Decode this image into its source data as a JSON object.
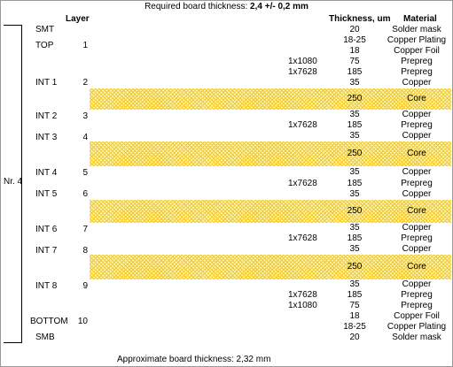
{
  "title": {
    "prefix": "Required board thickness: ",
    "value": "2,4 +/- 0,2 mm"
  },
  "headers": {
    "layer": "Layer",
    "thickness": "Thickness, um",
    "material": "Material"
  },
  "group_label": "Nr. 4",
  "footer": "Approximate board thickness: 2,32 mm",
  "colors": {
    "copper": "#e36c09",
    "mask": "#00a000",
    "prepreg": "#fffa9e",
    "core": "#f0c833"
  },
  "layer_names": [
    {
      "name": "SMT",
      "num": ""
    },
    {
      "name": "TOP",
      "num": "1"
    },
    {
      "name": "INT 1",
      "num": "2"
    },
    {
      "name": "INT 2",
      "num": "3"
    },
    {
      "name": "INT 3",
      "num": "4"
    },
    {
      "name": "INT 4",
      "num": "5"
    },
    {
      "name": "INT 5",
      "num": "6"
    },
    {
      "name": "INT 6",
      "num": "7"
    },
    {
      "name": "INT 7",
      "num": "8"
    },
    {
      "name": "INT 8",
      "num": "9"
    },
    {
      "name": "BOTTOM",
      "num": "10"
    },
    {
      "name": "SMB",
      "num": ""
    }
  ],
  "stack": [
    {
      "kind": "mask",
      "style": "",
      "thickness": "20",
      "material": "Solder mask"
    },
    {
      "kind": "copper",
      "style": "",
      "thickness": "18-25",
      "material": "Copper Plating"
    },
    {
      "kind": "copper",
      "style": "",
      "thickness": "18",
      "material": "Copper Foil"
    },
    {
      "kind": "prepreg",
      "style": "1x1080",
      "thickness": "75",
      "material": "Prepreg"
    },
    {
      "kind": "prepreg",
      "style": "1x7628",
      "thickness": "185",
      "material": "Prepreg"
    },
    {
      "kind": "copper",
      "style": "",
      "thickness": "35",
      "material": "Copper"
    },
    {
      "kind": "core",
      "style": "",
      "thickness": "250",
      "material": "Core"
    },
    {
      "kind": "copper",
      "style": "",
      "thickness": "35",
      "material": "Copper"
    },
    {
      "kind": "prepreg",
      "style": "1x7628",
      "thickness": "185",
      "material": "Prepreg"
    },
    {
      "kind": "copper",
      "style": "",
      "thickness": "35",
      "material": "Copper"
    },
    {
      "kind": "core",
      "style": "",
      "thickness": "250",
      "material": "Core"
    },
    {
      "kind": "copper",
      "style": "",
      "thickness": "35",
      "material": "Copper"
    },
    {
      "kind": "prepreg",
      "style": "1x7628",
      "thickness": "185",
      "material": "Prepreg"
    },
    {
      "kind": "copper",
      "style": "",
      "thickness": "35",
      "material": "Copper"
    },
    {
      "kind": "core",
      "style": "",
      "thickness": "250",
      "material": "Core"
    },
    {
      "kind": "copper",
      "style": "",
      "thickness": "35",
      "material": "Copper"
    },
    {
      "kind": "prepreg",
      "style": "1x7628",
      "thickness": "185",
      "material": "Prepreg"
    },
    {
      "kind": "copper",
      "style": "",
      "thickness": "35",
      "material": "Copper"
    },
    {
      "kind": "core",
      "style": "",
      "thickness": "250",
      "material": "Core"
    },
    {
      "kind": "copper",
      "style": "",
      "thickness": "35",
      "material": "Copper"
    },
    {
      "kind": "prepreg",
      "style": "1x7628",
      "thickness": "185",
      "material": "Prepreg"
    },
    {
      "kind": "prepreg",
      "style": "1x1080",
      "thickness": "75",
      "material": "Prepreg"
    },
    {
      "kind": "copper",
      "style": "",
      "thickness": "18",
      "material": "Copper Foil"
    },
    {
      "kind": "copper",
      "style": "",
      "thickness": "18-25",
      "material": "Copper Plating"
    },
    {
      "kind": "mask",
      "style": "",
      "thickness": "20",
      "material": "Solder mask"
    }
  ]
}
